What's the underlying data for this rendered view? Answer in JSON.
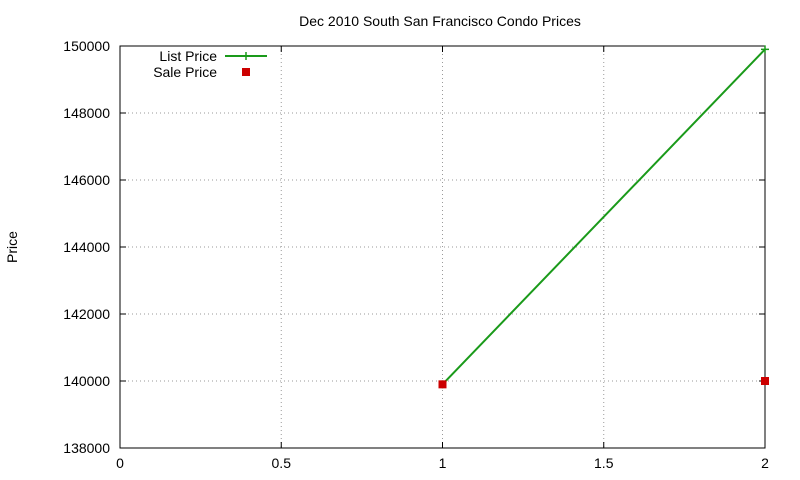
{
  "chart_data": {
    "type": "line",
    "title": "Dec 2010 South San Francisco Condo Prices",
    "xlabel": "",
    "ylabel": "Price",
    "xlim": [
      0,
      2
    ],
    "ylim": [
      138000,
      150000
    ],
    "xticks": [
      0,
      0.5,
      1,
      1.5,
      2
    ],
    "xtick_labels": [
      "0",
      "0.5",
      "1",
      "1.5",
      "2"
    ],
    "yticks": [
      138000,
      140000,
      142000,
      144000,
      146000,
      148000,
      150000
    ],
    "ytick_labels": [
      "138000",
      "140000",
      "142000",
      "144000",
      "146000",
      "148000",
      "150000"
    ],
    "grid": true,
    "legend_position": "top-left",
    "series": [
      {
        "name": "List Price",
        "style": "linespoints",
        "marker": "plus",
        "color": "#1a9a1a",
        "points": [
          [
            1,
            139900
          ],
          [
            2,
            149900
          ]
        ]
      },
      {
        "name": "Sale Price",
        "style": "points",
        "marker": "square",
        "color": "#cc0000",
        "points": [
          [
            1,
            139900
          ],
          [
            2,
            140000
          ]
        ]
      }
    ]
  }
}
